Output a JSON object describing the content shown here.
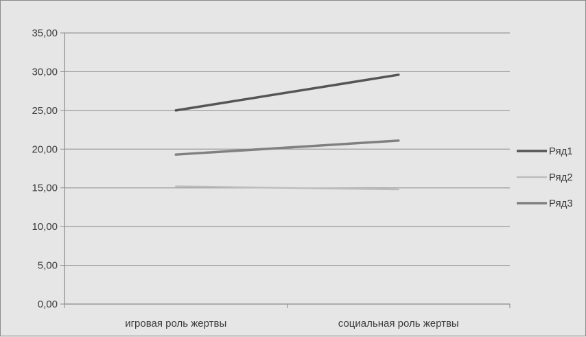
{
  "chart_data": {
    "type": "line",
    "title": "",
    "xlabel": "",
    "ylabel": "",
    "categories": [
      "игровая роль жертвы",
      "социальная роль жертвы"
    ],
    "ylim": [
      0,
      35
    ],
    "yticks": [
      "0,00",
      "5,00",
      "10,00",
      "15,00",
      "20,00",
      "25,00",
      "30,00",
      "35,00"
    ],
    "grid": true,
    "legend": "right",
    "series": [
      {
        "name": "Ряд1",
        "values": [
          25.0,
          29.6
        ],
        "color": "#555555"
      },
      {
        "name": "Ряд2",
        "values": [
          15.2,
          14.8
        ],
        "color": "#bdbdbd"
      },
      {
        "name": "Ряд3",
        "values": [
          19.3,
          21.1
        ],
        "color": "#808080"
      }
    ]
  }
}
